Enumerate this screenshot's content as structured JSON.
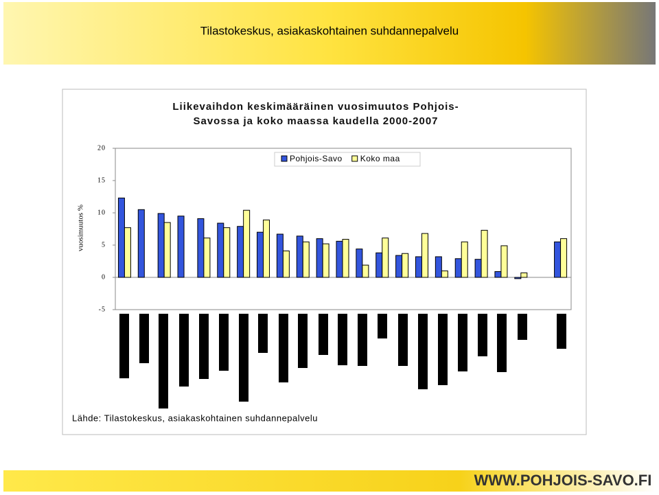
{
  "header": {
    "title": "Tilastokeskus, asiakaskohtainen suhdannepalvelu"
  },
  "footer": {
    "url": "WWW.POHJOIS-SAVO.FI"
  },
  "chart_data": {
    "type": "bar",
    "title": [
      "Liikevaihdon keskimääräinen vuosimuutos Pohjois-",
      "Savossa ja koko maassa kaudella 2000-2007"
    ],
    "y_label": "vuosimuutos %",
    "source": "Lähde: Tilastokeskus, asiakaskohtainen suhdannepalvelu",
    "categories": [
      null,
      null,
      null,
      null,
      null,
      null,
      null,
      null,
      null,
      null,
      null,
      null,
      null,
      null,
      null,
      null,
      null,
      null,
      null,
      null,
      null,
      null,
      null
    ],
    "series": [
      {
        "name": "Pohjois-Savo",
        "color": "#3355dd",
        "values": [
          12.3,
          10.5,
          9.9,
          9.5,
          9.1,
          8.4,
          7.9,
          7.0,
          6.7,
          6.4,
          6.0,
          5.6,
          4.4,
          3.8,
          3.4,
          3.2,
          3.2,
          2.9,
          2.8,
          0.9,
          -0.2,
          null,
          5.5
        ]
      },
      {
        "name": "Koko maa",
        "color": "#ffff99",
        "values": [
          7.7,
          null,
          8.5,
          null,
          6.1,
          7.7,
          10.4,
          8.9,
          4.1,
          5.5,
          5.2,
          5.9,
          1.9,
          6.1,
          3.7,
          6.8,
          1.0,
          5.5,
          7.3,
          4.9,
          0.7,
          null,
          6.0
        ]
      }
    ],
    "ylim": [
      -5,
      20
    ],
    "yticks": [
      -5,
      0,
      5,
      10,
      15,
      20
    ],
    "grid": false,
    "legend": "top"
  }
}
